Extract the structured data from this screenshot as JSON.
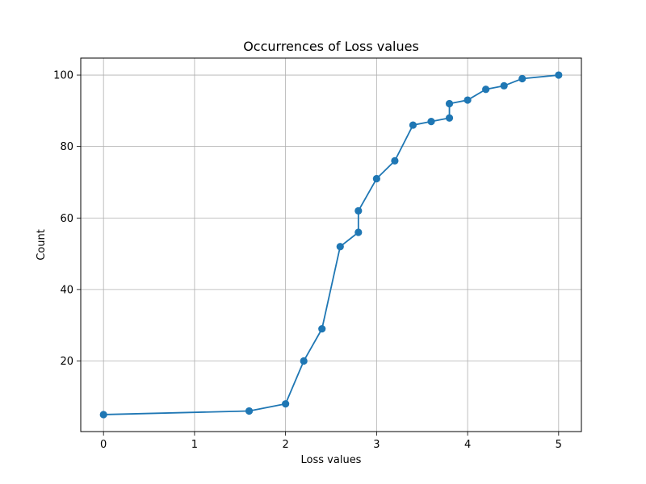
{
  "chart_data": {
    "type": "line",
    "title": "Occurrences of Loss values",
    "xlabel": "Loss values",
    "ylabel": "Count",
    "xlim": [
      -0.25,
      5.25
    ],
    "ylim": [
      0.25,
      104.75
    ],
    "x_ticks": [
      0,
      1,
      2,
      3,
      4,
      5
    ],
    "y_ticks": [
      20,
      40,
      60,
      80,
      100
    ],
    "grid": true,
    "series": [
      {
        "color": "#1f77b4",
        "marker": "circle",
        "x": [
          0.0,
          1.6,
          2.0,
          2.2,
          2.4,
          2.6,
          2.8,
          2.8,
          3.0,
          3.2,
          3.4,
          3.6,
          3.8,
          3.8,
          4.0,
          4.2,
          4.4,
          4.6,
          5.0
        ],
        "y": [
          5,
          6,
          8,
          20,
          29,
          52,
          56,
          62,
          71,
          76,
          86,
          87,
          88,
          92,
          93,
          96,
          97,
          99,
          100
        ]
      }
    ]
  }
}
